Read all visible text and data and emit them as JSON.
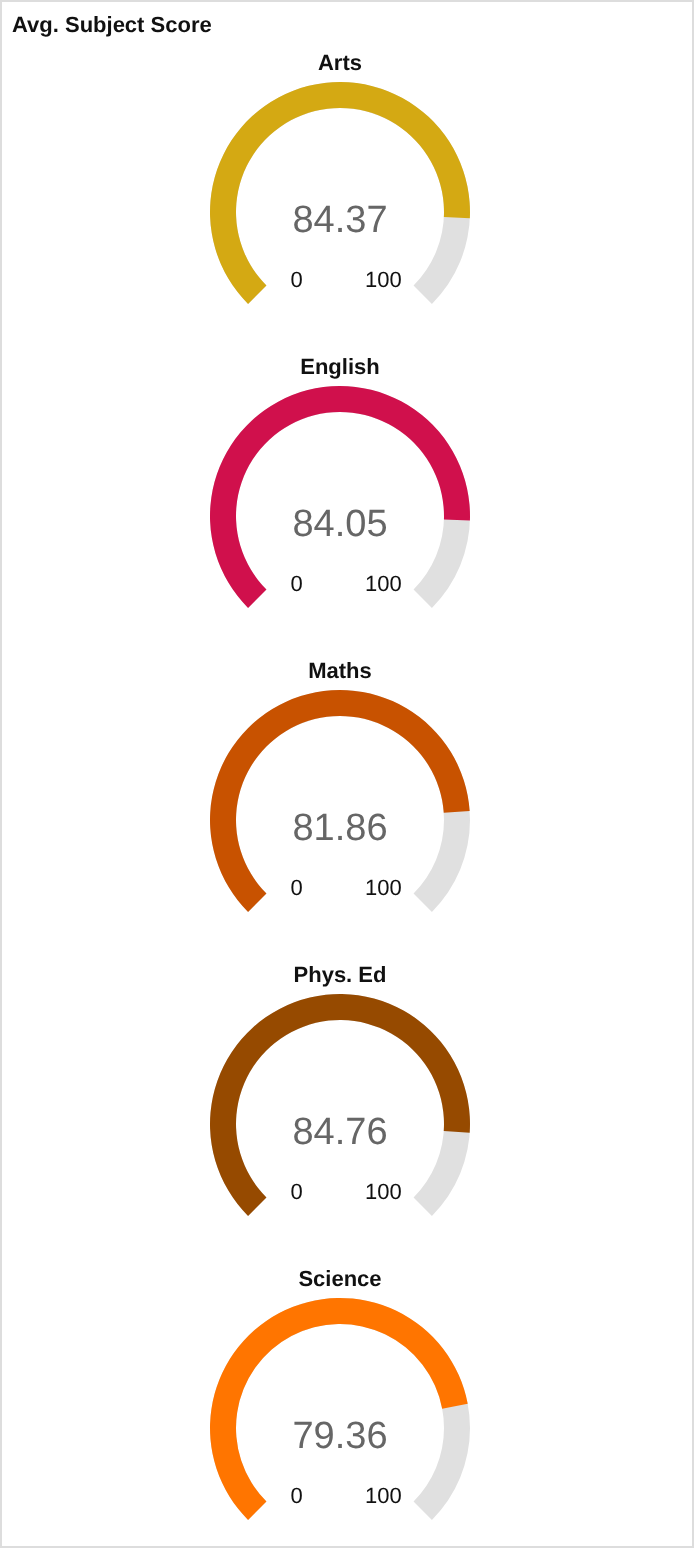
{
  "chart_data": [
    {
      "type": "other",
      "title": "Avg. Subject Score"
    },
    {
      "type": "other",
      "title": "Arts",
      "values": [
        84.37
      ],
      "colors": [
        "#d4a913"
      ],
      "annotations": [
        "0",
        "100"
      ],
      "data_labels": true
    },
    {
      "type": "other",
      "title": "English",
      "values": [
        84.05
      ],
      "colors": [
        "#d0104c"
      ],
      "annotations": [
        "0",
        "100"
      ],
      "data_labels": true
    },
    {
      "type": "other",
      "title": "Maths",
      "values": [
        81.86
      ],
      "colors": [
        "#c85200"
      ],
      "annotations": [
        "0",
        "100"
      ],
      "data_labels": true
    },
    {
      "type": "other",
      "title": "Phys. Ed",
      "values": [
        84.76
      ],
      "colors": [
        "#964a00"
      ],
      "annotations": [
        "0",
        "100"
      ],
      "data_labels": true
    },
    {
      "type": "other",
      "title": "Science",
      "values": [
        79.36
      ],
      "colors": [
        "#ff7500"
      ],
      "annotations": [
        "0",
        "100"
      ],
      "data_labels": true
    }
  ]
}
